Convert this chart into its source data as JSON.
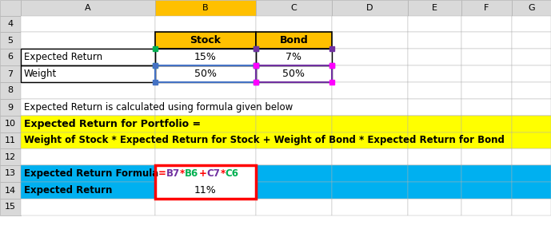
{
  "col_headers": [
    "",
    "A",
    "B",
    "C",
    "D",
    "E",
    "F",
    "G"
  ],
  "row_numbers": [
    "4",
    "5",
    "6",
    "7",
    "8",
    "9",
    "10",
    "11",
    "12",
    "13",
    "14",
    "15"
  ],
  "header_bg": "#d9d9d9",
  "col_B_header_bg": "#ffc000",
  "grid_color": "#b0b0b0",
  "bg_yellow": "#ffff00",
  "bg_cyan": "#00b0f0",
  "bg_orange": "#ffc000",
  "formula_parts": [
    [
      "=",
      "#ff0000"
    ],
    [
      "B7",
      "#7030a0"
    ],
    [
      "*",
      "#ff0000"
    ],
    [
      "B6",
      "#00b050"
    ],
    [
      "+",
      "#ff0000"
    ],
    [
      "C7",
      "#7030a0"
    ],
    [
      "*",
      "#ff0000"
    ],
    [
      "C6",
      "#00b050"
    ]
  ],
  "cells": {
    "row5_B": "Stock",
    "row5_C": "Bond",
    "row6_A": "Expected Return",
    "row6_B": "15%",
    "row6_C": "7%",
    "row7_A": "Weight",
    "row7_B": "50%",
    "row7_C": "50%",
    "row9_A": "Expected Return is calculated using formula given below",
    "row10_A": "Expected Return for Portfolio =",
    "row11_A": "Weight of Stock * Expected Return for Stock + Weight of Bond * Expected Return for Bond",
    "row13_A": "Expected Return Formula",
    "row14_A": "Expected Return",
    "row14_B": "11%"
  }
}
